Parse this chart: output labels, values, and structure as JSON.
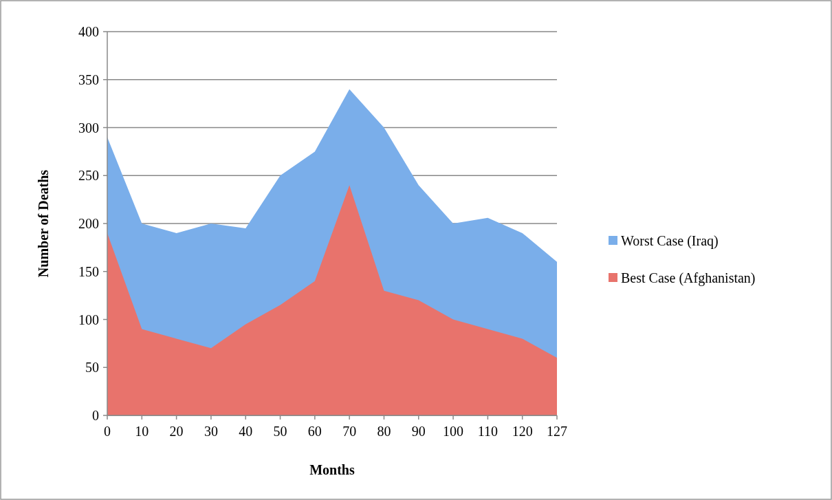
{
  "chart_data": {
    "type": "area",
    "xlabel": "Months",
    "ylabel": "Number of Deaths",
    "categories": [
      "0",
      "10",
      "20",
      "30",
      "40",
      "50",
      "60",
      "70",
      "80",
      "90",
      "100",
      "110",
      "120",
      "127"
    ],
    "series": [
      {
        "name": "Worst Case (Iraq)",
        "color": "#7aaeea",
        "values": [
          290,
          200,
          190,
          200,
          195,
          250,
          275,
          340,
          300,
          240,
          200,
          206,
          190,
          160
        ]
      },
      {
        "name": "Best Case (Afghanistan)",
        "color": "#e8736c",
        "values": [
          190,
          90,
          80,
          70,
          95,
          115,
          140,
          240,
          130,
          120,
          100,
          90,
          80,
          60
        ]
      }
    ],
    "ylim": [
      0,
      400
    ],
    "yticks": [
      0,
      50,
      100,
      150,
      200,
      250,
      300,
      350,
      400
    ],
    "grid": "y",
    "legend": "right"
  }
}
